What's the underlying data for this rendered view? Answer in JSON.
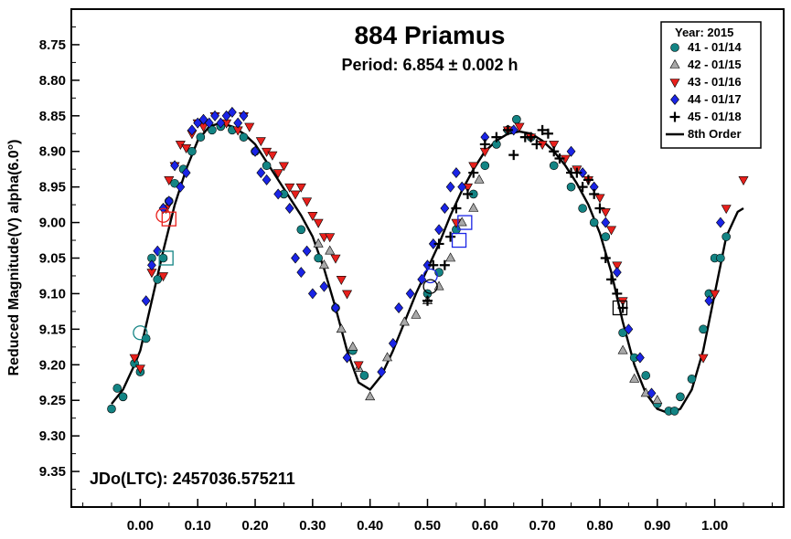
{
  "chart_data": {
    "type": "scatter",
    "title": "884 Priamus",
    "subtitle": "Period: 6.854 ± 0.002 h",
    "annotation": "JDo(LTC): 2457036.575211",
    "xlabel": "",
    "ylabel": "Reduced Magnitude(V) alpha(6.0°)",
    "xlim": [
      -0.12,
      1.12
    ],
    "ylim": [
      9.4,
      8.7
    ],
    "y_inverted": true,
    "x_ticks": [
      "0.00",
      "0.10",
      "0.20",
      "0.30",
      "0.40",
      "0.50",
      "0.60",
      "0.70",
      "0.80",
      "0.90",
      "1.00"
    ],
    "x_tick_values": [
      0.0,
      0.1,
      0.2,
      0.3,
      0.4,
      0.5,
      0.6,
      0.7,
      0.8,
      0.9,
      1.0
    ],
    "y_ticks": [
      "8.75",
      "8.80",
      "8.85",
      "8.90",
      "8.95",
      "9.00",
      "9.05",
      "9.10",
      "9.15",
      "9.20",
      "9.25",
      "9.30",
      "9.35"
    ],
    "y_tick_values": [
      8.75,
      8.8,
      8.85,
      8.9,
      8.95,
      9.0,
      9.05,
      9.1,
      9.15,
      9.2,
      9.25,
      9.3,
      9.35
    ],
    "grid": false,
    "legend": {
      "title": "Year: 2015",
      "placement": "top-right",
      "entries": [
        {
          "label": "41 - 01/14",
          "marker": "circle",
          "color": "#138484"
        },
        {
          "label": "42 - 01/15",
          "marker": "triangle-up",
          "color": "#a8a8a8"
        },
        {
          "label": "43 - 01/16",
          "marker": "triangle-down",
          "color": "#e8201c"
        },
        {
          "label": "44 - 01/17",
          "marker": "diamond",
          "color": "#1a24e6"
        },
        {
          "label": "45 - 01/18",
          "marker": "plus",
          "color": "#000000"
        },
        {
          "label": "8th Order",
          "marker": "line",
          "color": "#000000"
        }
      ]
    },
    "series": [
      {
        "name": "41 - 01/14",
        "marker": "circle",
        "color": "#138484",
        "points": [
          [
            -0.05,
            9.262
          ],
          [
            -0.04,
            9.233
          ],
          [
            -0.03,
            9.245
          ],
          [
            -0.01,
            9.198
          ],
          [
            0.0,
            9.21
          ],
          [
            0.01,
            9.163
          ],
          [
            0.02,
            9.05
          ],
          [
            0.03,
            9.08
          ],
          [
            0.04,
            9.05
          ],
          [
            0.05,
            8.97
          ],
          [
            0.06,
            8.945
          ],
          [
            0.075,
            8.925
          ],
          [
            0.09,
            8.9
          ],
          [
            0.105,
            8.88
          ],
          [
            0.125,
            8.87
          ],
          [
            0.14,
            8.865
          ],
          [
            0.16,
            8.87
          ],
          [
            0.18,
            8.88
          ],
          [
            0.2,
            8.9
          ],
          [
            0.22,
            8.92
          ],
          [
            0.25,
            8.96
          ],
          [
            0.28,
            9.01
          ],
          [
            0.31,
            9.05
          ],
          [
            0.34,
            9.12
          ],
          [
            0.37,
            9.18
          ],
          [
            0.39,
            9.215
          ],
          [
            0.5,
            9.1
          ],
          [
            0.52,
            9.07
          ],
          [
            0.55,
            9.01
          ],
          [
            0.58,
            8.96
          ],
          [
            0.6,
            8.92
          ],
          [
            0.62,
            8.89
          ],
          [
            0.64,
            8.87
          ],
          [
            0.655,
            8.855
          ],
          [
            0.68,
            8.88
          ],
          [
            0.72,
            8.92
          ],
          [
            0.75,
            8.95
          ],
          [
            0.77,
            8.98
          ],
          [
            0.79,
            9.0
          ],
          [
            0.81,
            9.02
          ],
          [
            0.84,
            9.155
          ],
          [
            0.86,
            9.19
          ],
          [
            0.88,
            9.215
          ],
          [
            0.9,
            9.255
          ],
          [
            0.92,
            9.265
          ],
          [
            0.93,
            9.265
          ],
          [
            0.94,
            9.245
          ],
          [
            0.96,
            9.22
          ],
          [
            0.98,
            9.15
          ],
          [
            0.99,
            9.1
          ],
          [
            1.0,
            9.05
          ],
          [
            1.01,
            9.05
          ],
          [
            1.02,
            9.02
          ]
        ]
      },
      {
        "name": "42 - 01/15",
        "marker": "triangle-up",
        "color": "#a8a8a8",
        "points": [
          [
            0.31,
            9.03
          ],
          [
            0.32,
            9.06
          ],
          [
            0.33,
            9.04
          ],
          [
            0.35,
            9.15
          ],
          [
            0.37,
            9.175
          ],
          [
            0.38,
            9.205
          ],
          [
            0.4,
            9.245
          ],
          [
            0.43,
            9.19
          ],
          [
            0.46,
            9.14
          ],
          [
            0.48,
            9.13
          ],
          [
            0.5,
            9.11
          ],
          [
            0.52,
            9.09
          ],
          [
            0.54,
            9.05
          ],
          [
            0.56,
            9.0
          ],
          [
            0.58,
            8.98
          ],
          [
            0.59,
            8.94
          ],
          [
            0.84,
            9.18
          ],
          [
            0.86,
            9.22
          ],
          [
            0.88,
            9.24
          ],
          [
            0.9,
            9.25
          ]
        ]
      },
      {
        "name": "43 - 01/16",
        "marker": "triangle-down",
        "color": "#e8201c",
        "points": [
          [
            -0.01,
            9.19
          ],
          [
            0.0,
            9.205
          ],
          [
            0.02,
            9.07
          ],
          [
            0.04,
            9.075
          ],
          [
            0.045,
            8.98
          ],
          [
            0.05,
            8.94
          ],
          [
            0.06,
            8.92
          ],
          [
            0.07,
            8.89
          ],
          [
            0.08,
            8.895
          ],
          [
            0.09,
            8.875
          ],
          [
            0.1,
            8.86
          ],
          [
            0.11,
            8.865
          ],
          [
            0.13,
            8.85
          ],
          [
            0.15,
            8.86
          ],
          [
            0.17,
            8.87
          ],
          [
            0.18,
            8.85
          ],
          [
            0.19,
            8.865
          ],
          [
            0.21,
            8.885
          ],
          [
            0.22,
            8.9
          ],
          [
            0.23,
            8.905
          ],
          [
            0.24,
            8.93
          ],
          [
            0.25,
            8.92
          ],
          [
            0.26,
            8.95
          ],
          [
            0.27,
            8.96
          ],
          [
            0.28,
            8.95
          ],
          [
            0.29,
            8.97
          ],
          [
            0.3,
            8.99
          ],
          [
            0.31,
            9.0
          ],
          [
            0.32,
            9.02
          ],
          [
            0.33,
            9.02
          ],
          [
            0.34,
            9.05
          ],
          [
            0.35,
            9.08
          ],
          [
            0.36,
            9.1
          ],
          [
            0.38,
            9.2
          ],
          [
            0.55,
            9.0
          ],
          [
            0.57,
            8.95
          ],
          [
            0.58,
            8.92
          ],
          [
            0.6,
            8.9
          ],
          [
            0.64,
            8.87
          ],
          [
            0.66,
            8.865
          ],
          [
            0.68,
            8.88
          ],
          [
            0.7,
            8.89
          ],
          [
            0.72,
            8.89
          ],
          [
            0.74,
            8.91
          ],
          [
            0.76,
            8.925
          ],
          [
            0.78,
            8.94
          ],
          [
            0.8,
            8.965
          ],
          [
            0.81,
            8.985
          ],
          [
            0.82,
            9.01
          ],
          [
            0.83,
            9.06
          ],
          [
            0.84,
            9.11
          ],
          [
            0.98,
            9.19
          ],
          [
            1.0,
            9.1
          ],
          [
            1.02,
            8.98
          ],
          [
            1.05,
            8.94
          ]
        ]
      },
      {
        "name": "44 - 01/17",
        "marker": "diamond",
        "color": "#1a24e6",
        "points": [
          [
            0.01,
            9.11
          ],
          [
            0.02,
            9.06
          ],
          [
            0.03,
            9.04
          ],
          [
            0.04,
            8.98
          ],
          [
            0.05,
            8.97
          ],
          [
            0.06,
            8.92
          ],
          [
            0.07,
            8.95
          ],
          [
            0.08,
            8.93
          ],
          [
            0.09,
            8.87
          ],
          [
            0.1,
            8.86
          ],
          [
            0.11,
            8.855
          ],
          [
            0.12,
            8.86
          ],
          [
            0.13,
            8.85
          ],
          [
            0.14,
            8.86
          ],
          [
            0.15,
            8.85
          ],
          [
            0.16,
            8.845
          ],
          [
            0.17,
            8.86
          ],
          [
            0.18,
            8.85
          ],
          [
            0.2,
            8.9
          ],
          [
            0.21,
            8.93
          ],
          [
            0.22,
            8.94
          ],
          [
            0.24,
            8.96
          ],
          [
            0.26,
            8.98
          ],
          [
            0.27,
            9.05
          ],
          [
            0.28,
            9.07
          ],
          [
            0.29,
            9.04
          ],
          [
            0.3,
            9.1
          ],
          [
            0.32,
            9.09
          ],
          [
            0.34,
            9.12
          ],
          [
            0.36,
            9.19
          ],
          [
            0.42,
            9.21
          ],
          [
            0.44,
            9.17
          ],
          [
            0.45,
            9.12
          ],
          [
            0.47,
            9.1
          ],
          [
            0.49,
            9.08
          ],
          [
            0.5,
            9.06
          ],
          [
            0.51,
            9.03
          ],
          [
            0.52,
            9.01
          ],
          [
            0.53,
            8.98
          ],
          [
            0.54,
            8.95
          ],
          [
            0.55,
            8.93
          ],
          [
            0.56,
            8.95
          ],
          [
            0.6,
            8.88
          ],
          [
            0.65,
            8.87
          ],
          [
            0.75,
            8.9
          ],
          [
            0.77,
            8.93
          ],
          [
            0.79,
            8.95
          ],
          [
            0.81,
            9.0
          ],
          [
            0.83,
            9.07
          ],
          [
            0.85,
            9.15
          ],
          [
            0.87,
            9.19
          ],
          [
            0.89,
            9.24
          ],
          [
            0.99,
            9.11
          ],
          [
            1.01,
            9.0
          ]
        ]
      },
      {
        "name": "45 - 01/18",
        "marker": "plus",
        "color": "#000000",
        "points": [
          [
            0.5,
            9.11
          ],
          [
            0.51,
            9.06
          ],
          [
            0.52,
            9.03
          ],
          [
            0.53,
            9.06
          ],
          [
            0.54,
            9.02
          ],
          [
            0.55,
            8.98
          ],
          [
            0.57,
            8.96
          ],
          [
            0.58,
            8.93
          ],
          [
            0.6,
            8.89
          ],
          [
            0.62,
            8.88
          ],
          [
            0.64,
            8.87
          ],
          [
            0.65,
            8.905
          ],
          [
            0.67,
            8.88
          ],
          [
            0.68,
            8.88
          ],
          [
            0.69,
            8.89
          ],
          [
            0.7,
            8.87
          ],
          [
            0.71,
            8.875
          ],
          [
            0.72,
            8.9
          ],
          [
            0.73,
            8.91
          ],
          [
            0.75,
            8.93
          ],
          [
            0.76,
            8.93
          ],
          [
            0.77,
            8.95
          ],
          [
            0.78,
            8.94
          ],
          [
            0.79,
            8.96
          ],
          [
            0.8,
            8.98
          ],
          [
            0.81,
            9.05
          ],
          [
            0.82,
            9.08
          ],
          [
            0.83,
            9.1
          ],
          [
            0.84,
            9.12
          ]
        ]
      }
    ],
    "fit_curve": {
      "name": "8th Order",
      "color": "#000000",
      "points": [
        [
          -0.05,
          9.255
        ],
        [
          -0.03,
          9.235
        ],
        [
          -0.01,
          9.2
        ],
        [
          0.0,
          9.18
        ],
        [
          0.02,
          9.11
        ],
        [
          0.04,
          9.04
        ],
        [
          0.06,
          8.975
        ],
        [
          0.08,
          8.925
        ],
        [
          0.1,
          8.885
        ],
        [
          0.12,
          8.865
        ],
        [
          0.14,
          8.86
        ],
        [
          0.16,
          8.865
        ],
        [
          0.18,
          8.875
        ],
        [
          0.2,
          8.89
        ],
        [
          0.22,
          8.915
        ],
        [
          0.24,
          8.94
        ],
        [
          0.26,
          8.965
        ],
        [
          0.28,
          8.99
        ],
        [
          0.3,
          9.02
        ],
        [
          0.32,
          9.065
        ],
        [
          0.34,
          9.12
        ],
        [
          0.36,
          9.18
        ],
        [
          0.38,
          9.225
        ],
        [
          0.4,
          9.235
        ],
        [
          0.42,
          9.215
        ],
        [
          0.44,
          9.18
        ],
        [
          0.46,
          9.14
        ],
        [
          0.48,
          9.1
        ],
        [
          0.5,
          9.065
        ],
        [
          0.52,
          9.03
        ],
        [
          0.54,
          8.99
        ],
        [
          0.56,
          8.955
        ],
        [
          0.58,
          8.925
        ],
        [
          0.6,
          8.9
        ],
        [
          0.62,
          8.885
        ],
        [
          0.64,
          8.875
        ],
        [
          0.66,
          8.872
        ],
        [
          0.68,
          8.875
        ],
        [
          0.7,
          8.885
        ],
        [
          0.72,
          8.9
        ],
        [
          0.74,
          8.92
        ],
        [
          0.76,
          8.945
        ],
        [
          0.78,
          8.975
        ],
        [
          0.8,
          9.015
        ],
        [
          0.82,
          9.07
        ],
        [
          0.84,
          9.14
        ],
        [
          0.86,
          9.2
        ],
        [
          0.88,
          9.24
        ],
        [
          0.9,
          9.262
        ],
        [
          0.92,
          9.268
        ],
        [
          0.94,
          9.262
        ],
        [
          0.96,
          9.235
        ],
        [
          0.98,
          9.18
        ],
        [
          1.0,
          9.1
        ],
        [
          1.02,
          9.02
        ],
        [
          1.04,
          8.985
        ],
        [
          1.05,
          8.98
        ]
      ]
    },
    "highlight_markers": [
      {
        "x": 0.04,
        "y": 8.99,
        "shape": "circle",
        "color": "#e8201c"
      },
      {
        "x": 0.05,
        "y": 8.995,
        "shape": "square",
        "color": "#e8201c"
      },
      {
        "x": 0.045,
        "y": 9.05,
        "shape": "square",
        "color": "#138484"
      },
      {
        "x": 0.0,
        "y": 9.155,
        "shape": "circle",
        "color": "#138484"
      },
      {
        "x": 0.505,
        "y": 9.075,
        "shape": "circle",
        "color": "#1a24e6"
      },
      {
        "x": 0.505,
        "y": 9.09,
        "shape": "circle",
        "color": "#000000"
      },
      {
        "x": 0.555,
        "y": 9.025,
        "shape": "square",
        "color": "#1a24e6"
      },
      {
        "x": 0.565,
        "y": 9.0,
        "shape": "square",
        "color": "#1a24e6"
      },
      {
        "x": 0.835,
        "y": 9.12,
        "shape": "square",
        "color": "#000000"
      }
    ]
  }
}
